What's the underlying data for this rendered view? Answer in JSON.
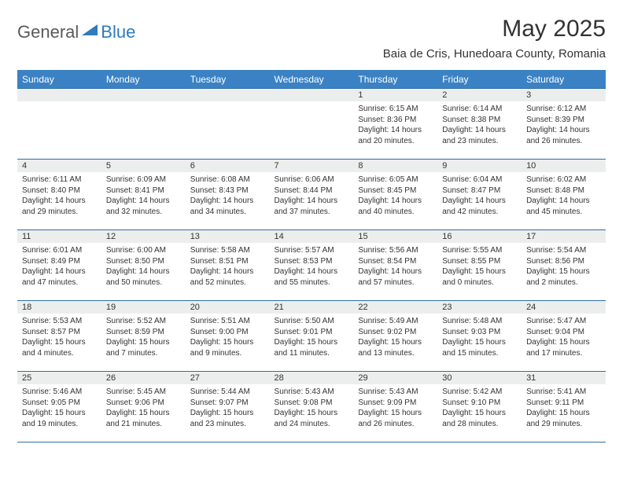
{
  "logo": {
    "word1": "General",
    "word2": "Blue"
  },
  "title": "May 2025",
  "location": "Baia de Cris, Hunedoara County, Romania",
  "header_bg": "#3b82c4",
  "header_fg": "#ffffff",
  "row_border": "#2f6ea8",
  "dayhead_bg": "#eceeee",
  "dayhead_fg": "#333333",
  "cell_fg": "#333333",
  "fonts": {
    "title_pt": 30,
    "location_pt": 15,
    "dow_pt": 12,
    "daynum_pt": 11,
    "body_pt": 10
  },
  "dow": [
    "Sunday",
    "Monday",
    "Tuesday",
    "Wednesday",
    "Thursday",
    "Friday",
    "Saturday"
  ],
  "weeks": [
    [
      null,
      null,
      null,
      null,
      {
        "d": "1",
        "sr": "6:15 AM",
        "ss": "8:36 PM",
        "dl": "14 hours and 20 minutes."
      },
      {
        "d": "2",
        "sr": "6:14 AM",
        "ss": "8:38 PM",
        "dl": "14 hours and 23 minutes."
      },
      {
        "d": "3",
        "sr": "6:12 AM",
        "ss": "8:39 PM",
        "dl": "14 hours and 26 minutes."
      }
    ],
    [
      {
        "d": "4",
        "sr": "6:11 AM",
        "ss": "8:40 PM",
        "dl": "14 hours and 29 minutes."
      },
      {
        "d": "5",
        "sr": "6:09 AM",
        "ss": "8:41 PM",
        "dl": "14 hours and 32 minutes."
      },
      {
        "d": "6",
        "sr": "6:08 AM",
        "ss": "8:43 PM",
        "dl": "14 hours and 34 minutes."
      },
      {
        "d": "7",
        "sr": "6:06 AM",
        "ss": "8:44 PM",
        "dl": "14 hours and 37 minutes."
      },
      {
        "d": "8",
        "sr": "6:05 AM",
        "ss": "8:45 PM",
        "dl": "14 hours and 40 minutes."
      },
      {
        "d": "9",
        "sr": "6:04 AM",
        "ss": "8:47 PM",
        "dl": "14 hours and 42 minutes."
      },
      {
        "d": "10",
        "sr": "6:02 AM",
        "ss": "8:48 PM",
        "dl": "14 hours and 45 minutes."
      }
    ],
    [
      {
        "d": "11",
        "sr": "6:01 AM",
        "ss": "8:49 PM",
        "dl": "14 hours and 47 minutes."
      },
      {
        "d": "12",
        "sr": "6:00 AM",
        "ss": "8:50 PM",
        "dl": "14 hours and 50 minutes."
      },
      {
        "d": "13",
        "sr": "5:58 AM",
        "ss": "8:51 PM",
        "dl": "14 hours and 52 minutes."
      },
      {
        "d": "14",
        "sr": "5:57 AM",
        "ss": "8:53 PM",
        "dl": "14 hours and 55 minutes."
      },
      {
        "d": "15",
        "sr": "5:56 AM",
        "ss": "8:54 PM",
        "dl": "14 hours and 57 minutes."
      },
      {
        "d": "16",
        "sr": "5:55 AM",
        "ss": "8:55 PM",
        "dl": "15 hours and 0 minutes."
      },
      {
        "d": "17",
        "sr": "5:54 AM",
        "ss": "8:56 PM",
        "dl": "15 hours and 2 minutes."
      }
    ],
    [
      {
        "d": "18",
        "sr": "5:53 AM",
        "ss": "8:57 PM",
        "dl": "15 hours and 4 minutes."
      },
      {
        "d": "19",
        "sr": "5:52 AM",
        "ss": "8:59 PM",
        "dl": "15 hours and 7 minutes."
      },
      {
        "d": "20",
        "sr": "5:51 AM",
        "ss": "9:00 PM",
        "dl": "15 hours and 9 minutes."
      },
      {
        "d": "21",
        "sr": "5:50 AM",
        "ss": "9:01 PM",
        "dl": "15 hours and 11 minutes."
      },
      {
        "d": "22",
        "sr": "5:49 AM",
        "ss": "9:02 PM",
        "dl": "15 hours and 13 minutes."
      },
      {
        "d": "23",
        "sr": "5:48 AM",
        "ss": "9:03 PM",
        "dl": "15 hours and 15 minutes."
      },
      {
        "d": "24",
        "sr": "5:47 AM",
        "ss": "9:04 PM",
        "dl": "15 hours and 17 minutes."
      }
    ],
    [
      {
        "d": "25",
        "sr": "5:46 AM",
        "ss": "9:05 PM",
        "dl": "15 hours and 19 minutes."
      },
      {
        "d": "26",
        "sr": "5:45 AM",
        "ss": "9:06 PM",
        "dl": "15 hours and 21 minutes."
      },
      {
        "d": "27",
        "sr": "5:44 AM",
        "ss": "9:07 PM",
        "dl": "15 hours and 23 minutes."
      },
      {
        "d": "28",
        "sr": "5:43 AM",
        "ss": "9:08 PM",
        "dl": "15 hours and 24 minutes."
      },
      {
        "d": "29",
        "sr": "5:43 AM",
        "ss": "9:09 PM",
        "dl": "15 hours and 26 minutes."
      },
      {
        "d": "30",
        "sr": "5:42 AM",
        "ss": "9:10 PM",
        "dl": "15 hours and 28 minutes."
      },
      {
        "d": "31",
        "sr": "5:41 AM",
        "ss": "9:11 PM",
        "dl": "15 hours and 29 minutes."
      }
    ]
  ],
  "labels": {
    "sunrise": "Sunrise:",
    "sunset": "Sunset:",
    "daylight": "Daylight:"
  }
}
